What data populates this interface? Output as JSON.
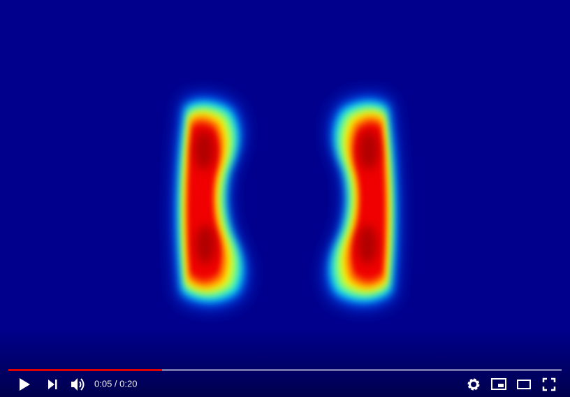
{
  "player": {
    "time_display": "0:05 / 0:20"
  }
}
